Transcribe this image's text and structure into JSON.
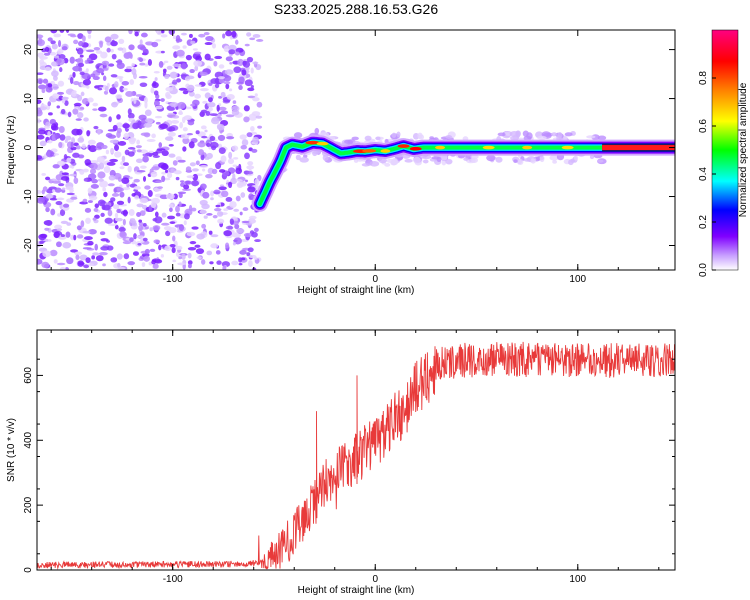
{
  "title": "S233.2025.288.16.53.G26",
  "chart_data": [
    {
      "type": "heatmap",
      "name": "spectrogram",
      "xlabel": "Height of straight line (km)",
      "ylabel": "Frequency (Hz)",
      "xlim": [
        -167,
        148
      ],
      "ylim": [
        -25,
        24
      ],
      "xticks": [
        -100,
        0,
        100
      ],
      "yticks": [
        -20,
        -10,
        0,
        10,
        20
      ],
      "colorbar": {
        "label": "Normalized spectral amplitude",
        "range": [
          0,
          1
        ],
        "ticks": [
          0.0,
          0.2,
          0.4,
          0.6,
          0.8
        ],
        "colormap": [
          "#ffffff",
          "#8000ff",
          "#0000ff",
          "#00ffff",
          "#00ff00",
          "#ffff00",
          "#ff8000",
          "#ff0000",
          "#ff0080"
        ]
      },
      "noise_region_x": [
        -167,
        -57
      ],
      "ridge": {
        "x": [
          -57,
          -52,
          -47,
          -44,
          -41,
          -36,
          -31,
          -26,
          -21,
          -17,
          -13,
          -9,
          -5,
          0,
          5,
          10,
          14,
          19,
          24,
          30,
          40,
          60,
          80,
          110,
          148
        ],
        "y": [
          -11.5,
          -7,
          -3,
          0,
          0.6,
          0.2,
          1,
          0.8,
          -0.3,
          -1.2,
          -1,
          -0.7,
          -0.8,
          -0.5,
          -0.7,
          -0.2,
          0.3,
          -0.3,
          0,
          0,
          0,
          0,
          0,
          0,
          0
        ]
      }
    },
    {
      "type": "line",
      "name": "snr",
      "xlabel": "Height of straight line (km)",
      "ylabel": "SNR (10 * v/v)",
      "xlim": [
        -167,
        148
      ],
      "ylim": [
        0,
        740
      ],
      "xticks": [
        -100,
        0,
        100
      ],
      "yticks": [
        0,
        200,
        400,
        600
      ],
      "color": "#e83a3a",
      "trend": {
        "x": [
          -167,
          -70,
          -55,
          -50,
          -45,
          -40,
          -35,
          -30,
          -25,
          -20,
          -15,
          -10,
          -5,
          0,
          5,
          10,
          15,
          20,
          25,
          30,
          40,
          60,
          80,
          100,
          120,
          148
        ],
        "y": [
          15,
          18,
          25,
          40,
          70,
          110,
          160,
          210,
          260,
          290,
          320,
          340,
          370,
          390,
          420,
          460,
          500,
          560,
          600,
          630,
          645,
          650,
          650,
          645,
          645,
          650
        ]
      },
      "spikes": [
        {
          "x": -29,
          "y": 490
        },
        {
          "x": -9,
          "y": 600
        }
      ]
    }
  ]
}
